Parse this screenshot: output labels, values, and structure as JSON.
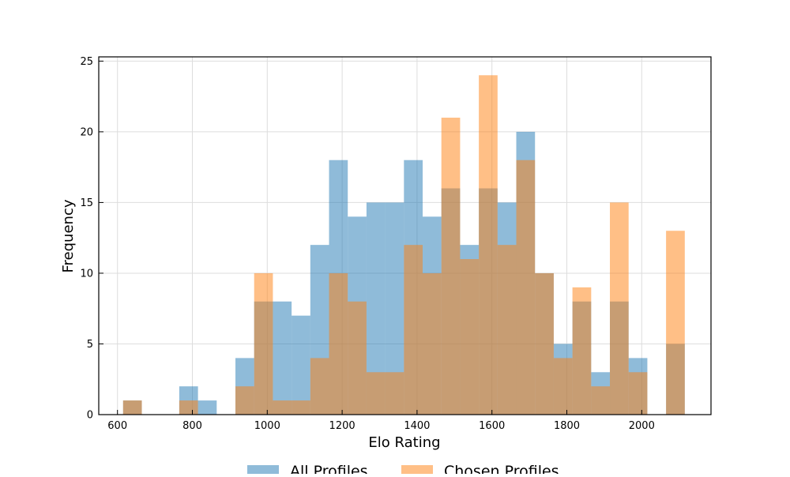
{
  "chart_data": {
    "type": "bar",
    "title": "",
    "xlabel": "Elo Rating",
    "ylabel": "Frequency",
    "xlim": [
      550,
      2185
    ],
    "ylim": [
      0,
      25.3
    ],
    "xticks": [
      600,
      800,
      1000,
      1200,
      1400,
      1600,
      1800,
      2000
    ],
    "yticks": [
      0,
      5,
      10,
      15,
      20,
      25
    ],
    "grid": true,
    "legend_position": "bottom-center",
    "bin_width": 50,
    "bin_starts": [
      615,
      665,
      715,
      765,
      815,
      865,
      915,
      965,
      1015,
      1065,
      1115,
      1165,
      1215,
      1265,
      1315,
      1365,
      1415,
      1465,
      1515,
      1565,
      1615,
      1665,
      1715,
      1765,
      1815,
      1865,
      1915,
      1965,
      2015,
      2065
    ],
    "series": [
      {
        "name": "All Profiles",
        "color": "#1f77b4",
        "values": [
          1,
          0,
          0,
          2,
          1,
          0,
          4,
          8,
          8,
          7,
          12,
          18,
          14,
          15,
          15,
          18,
          14,
          16,
          12,
          16,
          15,
          20,
          10,
          5,
          8,
          3,
          8,
          4,
          0,
          5
        ]
      },
      {
        "name": "Chosen Profiles",
        "color": "#ff7f0e",
        "values": [
          1,
          0,
          0,
          1,
          0,
          0,
          2,
          10,
          1,
          1,
          4,
          10,
          8,
          3,
          3,
          12,
          10,
          21,
          11,
          24,
          12,
          18,
          10,
          4,
          9,
          2,
          15,
          3,
          0,
          13
        ]
      }
    ]
  }
}
